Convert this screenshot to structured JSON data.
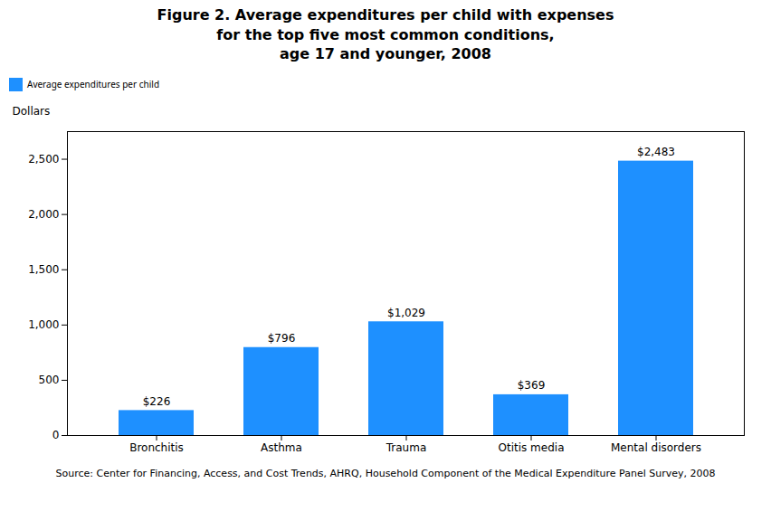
{
  "chart_data": {
    "type": "bar",
    "title": "Figure 2. Average expenditures per child with expenses\nfor the top five most common conditions,\nage 17 and younger, 2008",
    "caption": "Source: Center for Financing, Access, and Cost Trends, AHRQ, Household Component of the Medical Expenditure Panel Survey,  2008",
    "categories": [
      "Bronchitis",
      "Asthma",
      "Trauma",
      "Otitis media",
      "Mental disorders"
    ],
    "series": [
      {
        "name": "Average expenditures per child",
        "color": "#1e90ff",
        "values": [
          226,
          796,
          1029,
          369,
          2483
        ],
        "value_labels": [
          "$226",
          "$796",
          "$1,029",
          "$369",
          "$2,483"
        ]
      }
    ],
    "ylabel": "Dollars",
    "ylim": [
      0,
      2750
    ],
    "yticks": [
      0,
      500,
      {
        "value": 1000,
        "label": "1,000"
      },
      {
        "value": 1500,
        "label": "1,500"
      },
      {
        "value": 2000,
        "label": "2,000"
      },
      {
        "value": 2500,
        "label": "2,500"
      }
    ],
    "grid": false,
    "legend": "top",
    "data_labels": true
  }
}
